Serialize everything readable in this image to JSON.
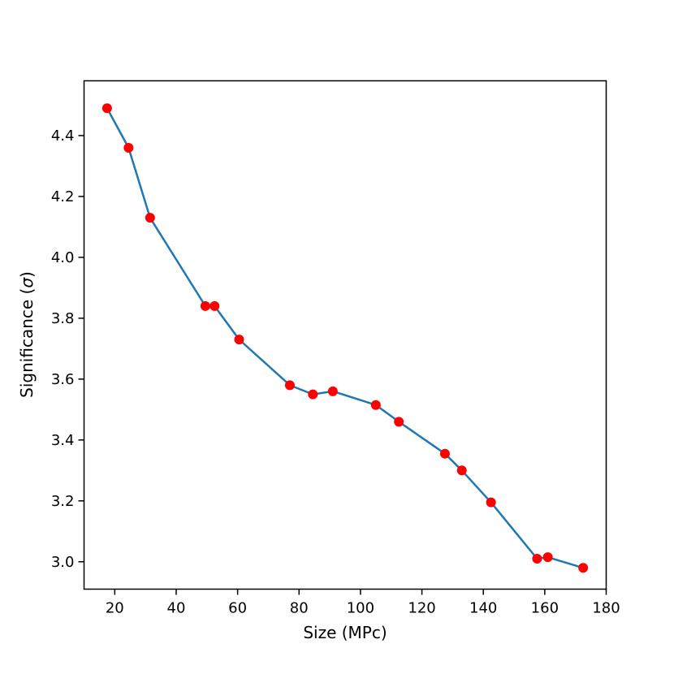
{
  "chart_data": {
    "type": "line",
    "title": "",
    "xlabel": "Size (MPc)",
    "ylabel_prefix": "Significance (",
    "ylabel_symbol": "σ",
    "ylabel_suffix": ")",
    "xlim": [
      10,
      180
    ],
    "ylim": [
      2.91,
      4.58
    ],
    "xticks": [
      20,
      40,
      60,
      80,
      100,
      120,
      140,
      160,
      180
    ],
    "xtick_labels": [
      "20",
      "40",
      "60",
      "80",
      "100",
      "120",
      "140",
      "160",
      "180"
    ],
    "yticks": [
      3.0,
      3.2,
      3.4,
      3.6,
      3.8,
      4.0,
      4.2,
      4.4
    ],
    "ytick_labels": [
      "3.0",
      "3.2",
      "3.4",
      "3.6",
      "3.8",
      "4.0",
      "4.2",
      "4.4"
    ],
    "grid": false,
    "line_color": "#1f77b4",
    "marker_color": "#ff0000",
    "x": [
      17.5,
      24.5,
      31.5,
      49.5,
      52.5,
      60.5,
      77.0,
      84.5,
      91.0,
      105.0,
      112.5,
      127.5,
      133.0,
      142.5,
      157.5,
      161.0,
      172.5
    ],
    "y": [
      4.49,
      4.36,
      4.13,
      3.84,
      3.84,
      3.73,
      3.58,
      3.55,
      3.56,
      3.515,
      3.46,
      3.355,
      3.3,
      3.195,
      3.01,
      3.015,
      2.98
    ]
  }
}
